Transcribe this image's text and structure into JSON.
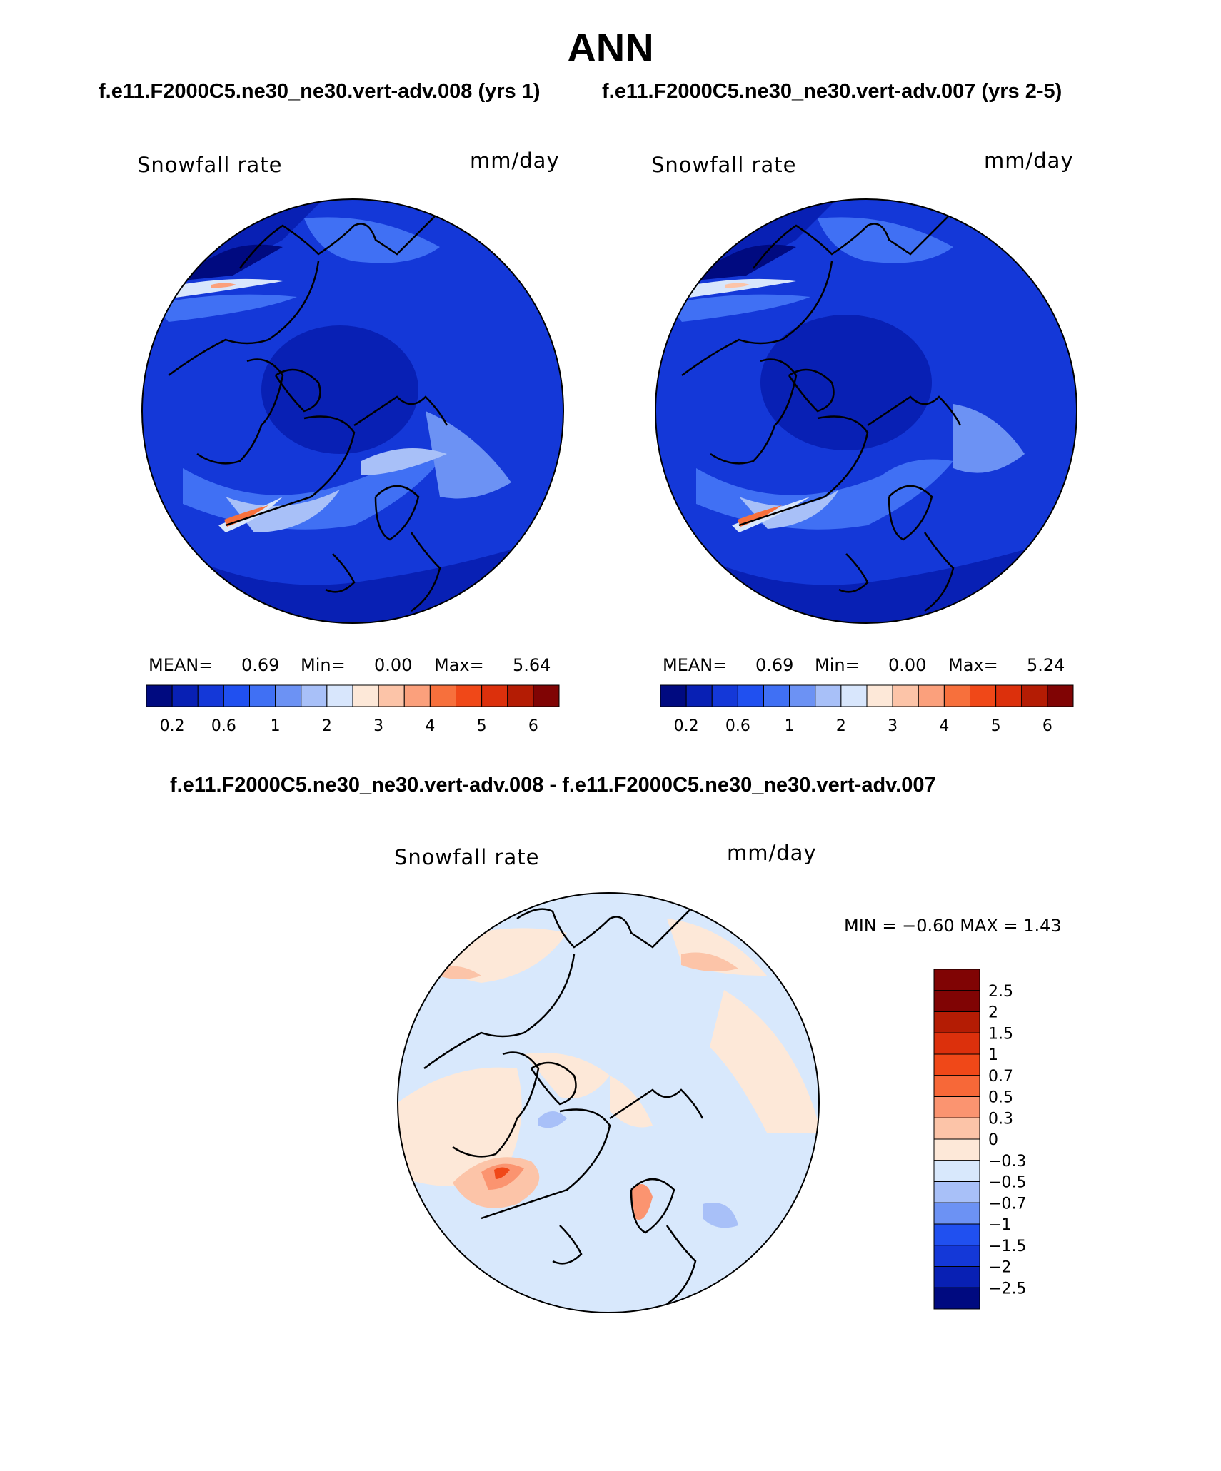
{
  "page": {
    "title": "ANN",
    "subtitle_left": "f.e11.F2000C5.ne30_ne30.vert-adv.008 (yrs 1)",
    "subtitle_right": "f.e11.F2000C5.ne30_ne30.vert-adv.007 (yrs 2-5)",
    "diff_title": "f.e11.F2000C5.ne30_ne30.vert-adv.008 - f.e11.F2000C5.ne30_ne30.vert-adv.007"
  },
  "colors": {
    "abs_scale": [
      "#000a80",
      "#0820b4",
      "#1438d8",
      "#2050f0",
      "#4070f4",
      "#6c92f4",
      "#a8c0f8",
      "#d8e6fc",
      "#fde8d8",
      "#fcc4a8",
      "#fba07c",
      "#f7703c",
      "#f04818",
      "#dc300c",
      "#b41c04",
      "#800404"
    ],
    "diff_scale": [
      "#000a80",
      "#0820b4",
      "#1438d8",
      "#2050f0",
      "#6c92f4",
      "#a8c0f8",
      "#d8e8fc",
      "#fde8d8",
      "#fcc4a8",
      "#fb9470",
      "#f76838",
      "#f04818",
      "#dc300c",
      "#b41c04",
      "#800404"
    ]
  },
  "chart_data": [
    {
      "type": "heatmap",
      "name": "map-left",
      "projection": "north-polar-stereographic",
      "variable": "Snowfall rate",
      "units": "mm/day",
      "stats": {
        "mean_label": "MEAN=",
        "mean": "0.69",
        "min_label": "Min=",
        "min": "0.00",
        "max_label": "Max=",
        "max": "5.64"
      },
      "colorbar_ticks": [
        "0.2",
        "0.6",
        "1",
        "2",
        "3",
        "4",
        "5",
        "6"
      ]
    },
    {
      "type": "heatmap",
      "name": "map-right",
      "projection": "north-polar-stereographic",
      "variable": "Snowfall rate",
      "units": "mm/day",
      "stats": {
        "mean_label": "MEAN=",
        "mean": "0.69",
        "min_label": "Min=",
        "min": "0.00",
        "max_label": "Max=",
        "max": "5.24"
      },
      "colorbar_ticks": [
        "0.2",
        "0.6",
        "1",
        "2",
        "3",
        "4",
        "5",
        "6"
      ]
    },
    {
      "type": "heatmap",
      "name": "map-diff",
      "projection": "north-polar-stereographic",
      "variable": "Snowfall rate",
      "units": "mm/day",
      "stats_line": "MIN =  −0.60 MAX =    1.43",
      "colorbar_ticks": [
        "2.5",
        "2",
        "1.5",
        "1",
        "0.7",
        "0.5",
        "0.3",
        "0",
        "−0.3",
        "−0.5",
        "−0.7",
        "−1",
        "−1.5",
        "−2",
        "−2.5"
      ]
    }
  ]
}
